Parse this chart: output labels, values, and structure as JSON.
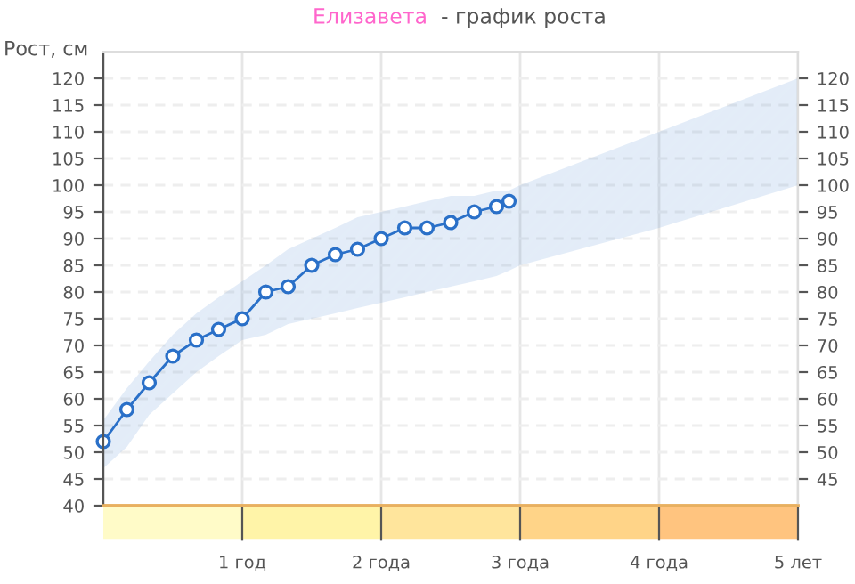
{
  "chart_data": {
    "type": "line",
    "title": "Елизавета",
    "subtitle": "- график роста",
    "ylabel": "Рост, см",
    "xlim": [
      0,
      5
    ],
    "xticks": [
      {
        "value": 1,
        "label": "1 год"
      },
      {
        "value": 2,
        "label": "2 года"
      },
      {
        "value": 3,
        "label": "3 года"
      },
      {
        "value": 4,
        "label": "4 года"
      },
      {
        "value": 5,
        "label": "5 лет"
      }
    ],
    "ylim": [
      40,
      125
    ],
    "yticks": [
      40,
      45,
      50,
      55,
      60,
      65,
      70,
      75,
      80,
      85,
      90,
      95,
      100,
      105,
      110,
      115,
      120
    ],
    "y2lim": [
      40,
      125
    ],
    "y2ticks": [
      45,
      50,
      55,
      60,
      65,
      70,
      75,
      80,
      85,
      90,
      95,
      100,
      105,
      110,
      115,
      120
    ],
    "grid": true,
    "marker": "circle",
    "line_style": "solid",
    "legend": false,
    "series": [
      {
        "color": "#2a70c8",
        "x": [
          0,
          0.17,
          0.33,
          0.5,
          0.67,
          0.83,
          1.0,
          1.17,
          1.33,
          1.5,
          1.67,
          1.83,
          2.0,
          2.17,
          2.33,
          2.5,
          2.67,
          2.83,
          2.92,
          3,
          4,
          5
        ],
        "values": [
          52,
          58,
          63,
          68,
          71,
          73,
          75,
          80,
          81,
          85,
          87,
          88,
          90,
          92,
          92,
          93,
          95,
          96,
          97,
          null,
          null,
          null
        ],
        "lower": [
          47,
          51,
          57,
          61,
          65,
          68,
          71,
          72,
          74,
          75,
          76,
          77,
          78,
          79,
          80,
          81,
          82,
          83,
          84,
          85,
          92,
          100
        ],
        "upper": [
          56,
          62,
          67,
          72,
          76,
          79,
          82,
          85,
          88,
          90,
          92,
          94,
          95,
          96,
          97,
          98,
          98,
          99,
          99,
          100,
          110,
          120
        ]
      }
    ]
  }
}
